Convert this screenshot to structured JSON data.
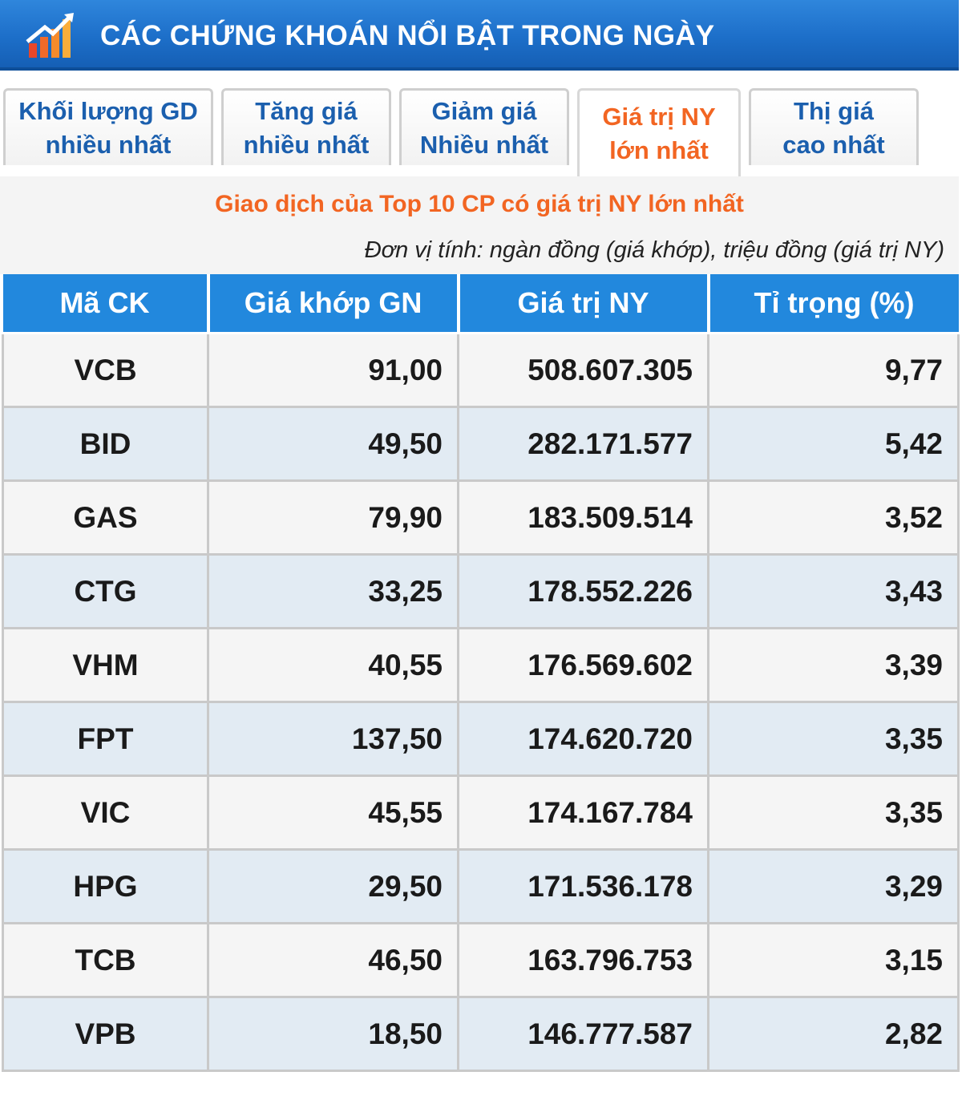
{
  "header": {
    "title": "CÁC CHỨNG KHOÁN NỔI BẬT TRONG NGÀY",
    "logo_icon": "rising-chart-icon"
  },
  "tabs": [
    {
      "line1": "Khối lượng GD",
      "line2": "nhiều nhất",
      "active": false
    },
    {
      "line1": "Tăng giá",
      "line2": "nhiều nhất",
      "active": false
    },
    {
      "line1": "Giảm giá",
      "line2": "Nhiều nhất",
      "active": false
    },
    {
      "line1": "Giá trị NY",
      "line2": "lớn nhất",
      "active": true
    },
    {
      "line1": "Thị giá",
      "line2": "cao nhất",
      "active": false
    }
  ],
  "panel": {
    "subtitle": "Giao dịch của Top 10 CP có giá trị NY lớn nhất",
    "unit_note": "Đơn vị tính: ngàn đồng (giá khớp), triệu đồng (giá trị NY)"
  },
  "table": {
    "headers": [
      "Mã CK",
      "Giá khớp GN",
      "Giá trị NY",
      "Tỉ trọng (%)"
    ],
    "rows": [
      [
        "VCB",
        "91,00",
        "508.607.305",
        "9,77"
      ],
      [
        "BID",
        "49,50",
        "282.171.577",
        "5,42"
      ],
      [
        "GAS",
        "79,90",
        "183.509.514",
        "3,52"
      ],
      [
        "CTG",
        "33,25",
        "178.552.226",
        "3,43"
      ],
      [
        "VHM",
        "40,55",
        "176.569.602",
        "3,39"
      ],
      [
        "FPT",
        "137,50",
        "174.620.720",
        "3,35"
      ],
      [
        "VIC",
        "45,55",
        "174.167.784",
        "3,35"
      ],
      [
        "HPG",
        "29,50",
        "171.536.178",
        "3,29"
      ],
      [
        "TCB",
        "46,50",
        "163.796.753",
        "3,15"
      ],
      [
        "VPB",
        "18,50",
        "146.777.587",
        "2,82"
      ]
    ]
  },
  "colors": {
    "header_blue": "#1d6fc9",
    "tab_blue": "#1b5fae",
    "accent_orange": "#f26522",
    "row_alt": "#e2ebf3"
  }
}
